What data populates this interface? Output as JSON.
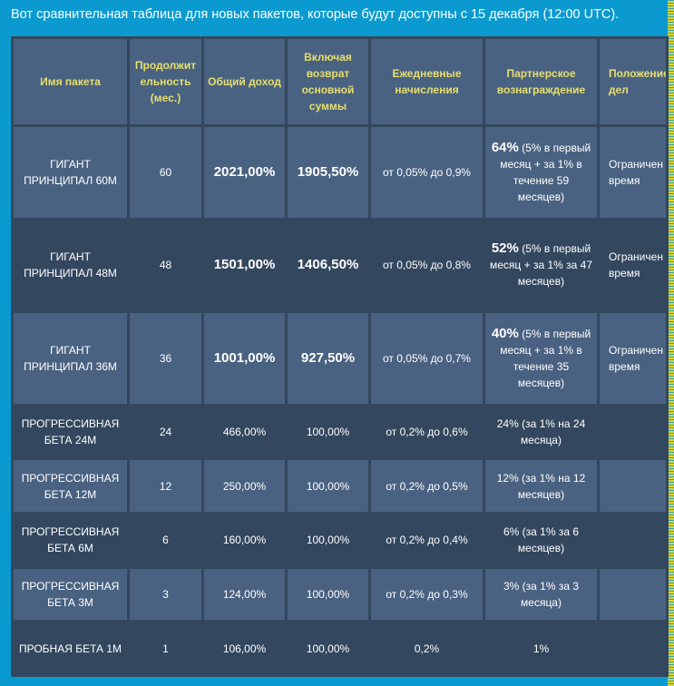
{
  "intro": "Вот сравнительная таблица для новых пакетов, которые будут доступны с 15 декабря (12:00 UTC).",
  "headers": [
    "Имя пакета",
    "Продолжительность (мес.)",
    "Общий доход",
    "Включая возврат основной суммы",
    "Ежедневные начисления",
    "Партнерское вознаграждение",
    "Положение дел"
  ],
  "rows": [
    {
      "name": "ГИГАНТ ПРИНЦИПАЛ 60M",
      "months": "60",
      "income": "2021,00%",
      "principal": "1905,50%",
      "daily": "от 0,05% до 0,9%",
      "ref_bold": "64%",
      "ref": " (5% в первый месяц + за 1% в течение 59 месяцев)",
      "status": "Ограничен время"
    },
    {
      "name": "ГИГАНТ ПРИНЦИПАЛ 48M",
      "months": "48",
      "income": "1501,00%",
      "principal": "1406,50%",
      "daily": "от 0,05% до 0,8%",
      "ref_bold": "52%",
      "ref": " (5% в первый месяц + за 1% за 47 месяцев)",
      "status": "Ограничен время"
    },
    {
      "name": "ГИГАНТ ПРИНЦИПАЛ 36M",
      "months": "36",
      "income": "1001,00%",
      "principal": "927,50%",
      "daily": "от 0,05% до 0,7%",
      "ref_bold": "40%",
      "ref": " (5% в первый месяц + за 1% в течение 35 месяцев)",
      "status": "Ограничен время"
    },
    {
      "name": "ПРОГРЕССИВНАЯ БЕТА 24M",
      "months": "24",
      "income": "466,00%",
      "principal": "100,00%",
      "daily": "от 0,2% до 0,6%",
      "ref": "24% (за 1% на 24 месяца)",
      "status": ""
    },
    {
      "name": "ПРОГРЕССИВНАЯ БЕТА 12M",
      "months": "12",
      "income": "250,00%",
      "principal": "100,00%",
      "daily": "от 0,2% до 0,5%",
      "ref": "12% (за 1% на 12 месяцев)",
      "status": ""
    },
    {
      "name": "ПРОГРЕССИВНАЯ БЕТА 6M",
      "months": "6",
      "income": "160,00%",
      "principal": "100,00%",
      "daily": "от 0,2% до 0,4%",
      "ref": "6% (за 1% за 6 месяцев)",
      "status": ""
    },
    {
      "name": "ПРОГРЕССИВНАЯ БЕТА 3M",
      "months": "3",
      "income": "124,00%",
      "principal": "100,00%",
      "daily": "от 0,2% до 0,3%",
      "ref": "3% (за 1% за 3 месяца)",
      "status": ""
    },
    {
      "name": "ПРОБНАЯ БЕТА 1M",
      "months": "1",
      "income": "106,00%",
      "principal": "100,00%",
      "daily": "0,2%",
      "ref": "1%",
      "status": ""
    }
  ],
  "colors": {
    "background": "#0b9ad0",
    "header_text": "#e6df6e",
    "row_light": "#4a6281",
    "row_dark": "#33475e"
  }
}
